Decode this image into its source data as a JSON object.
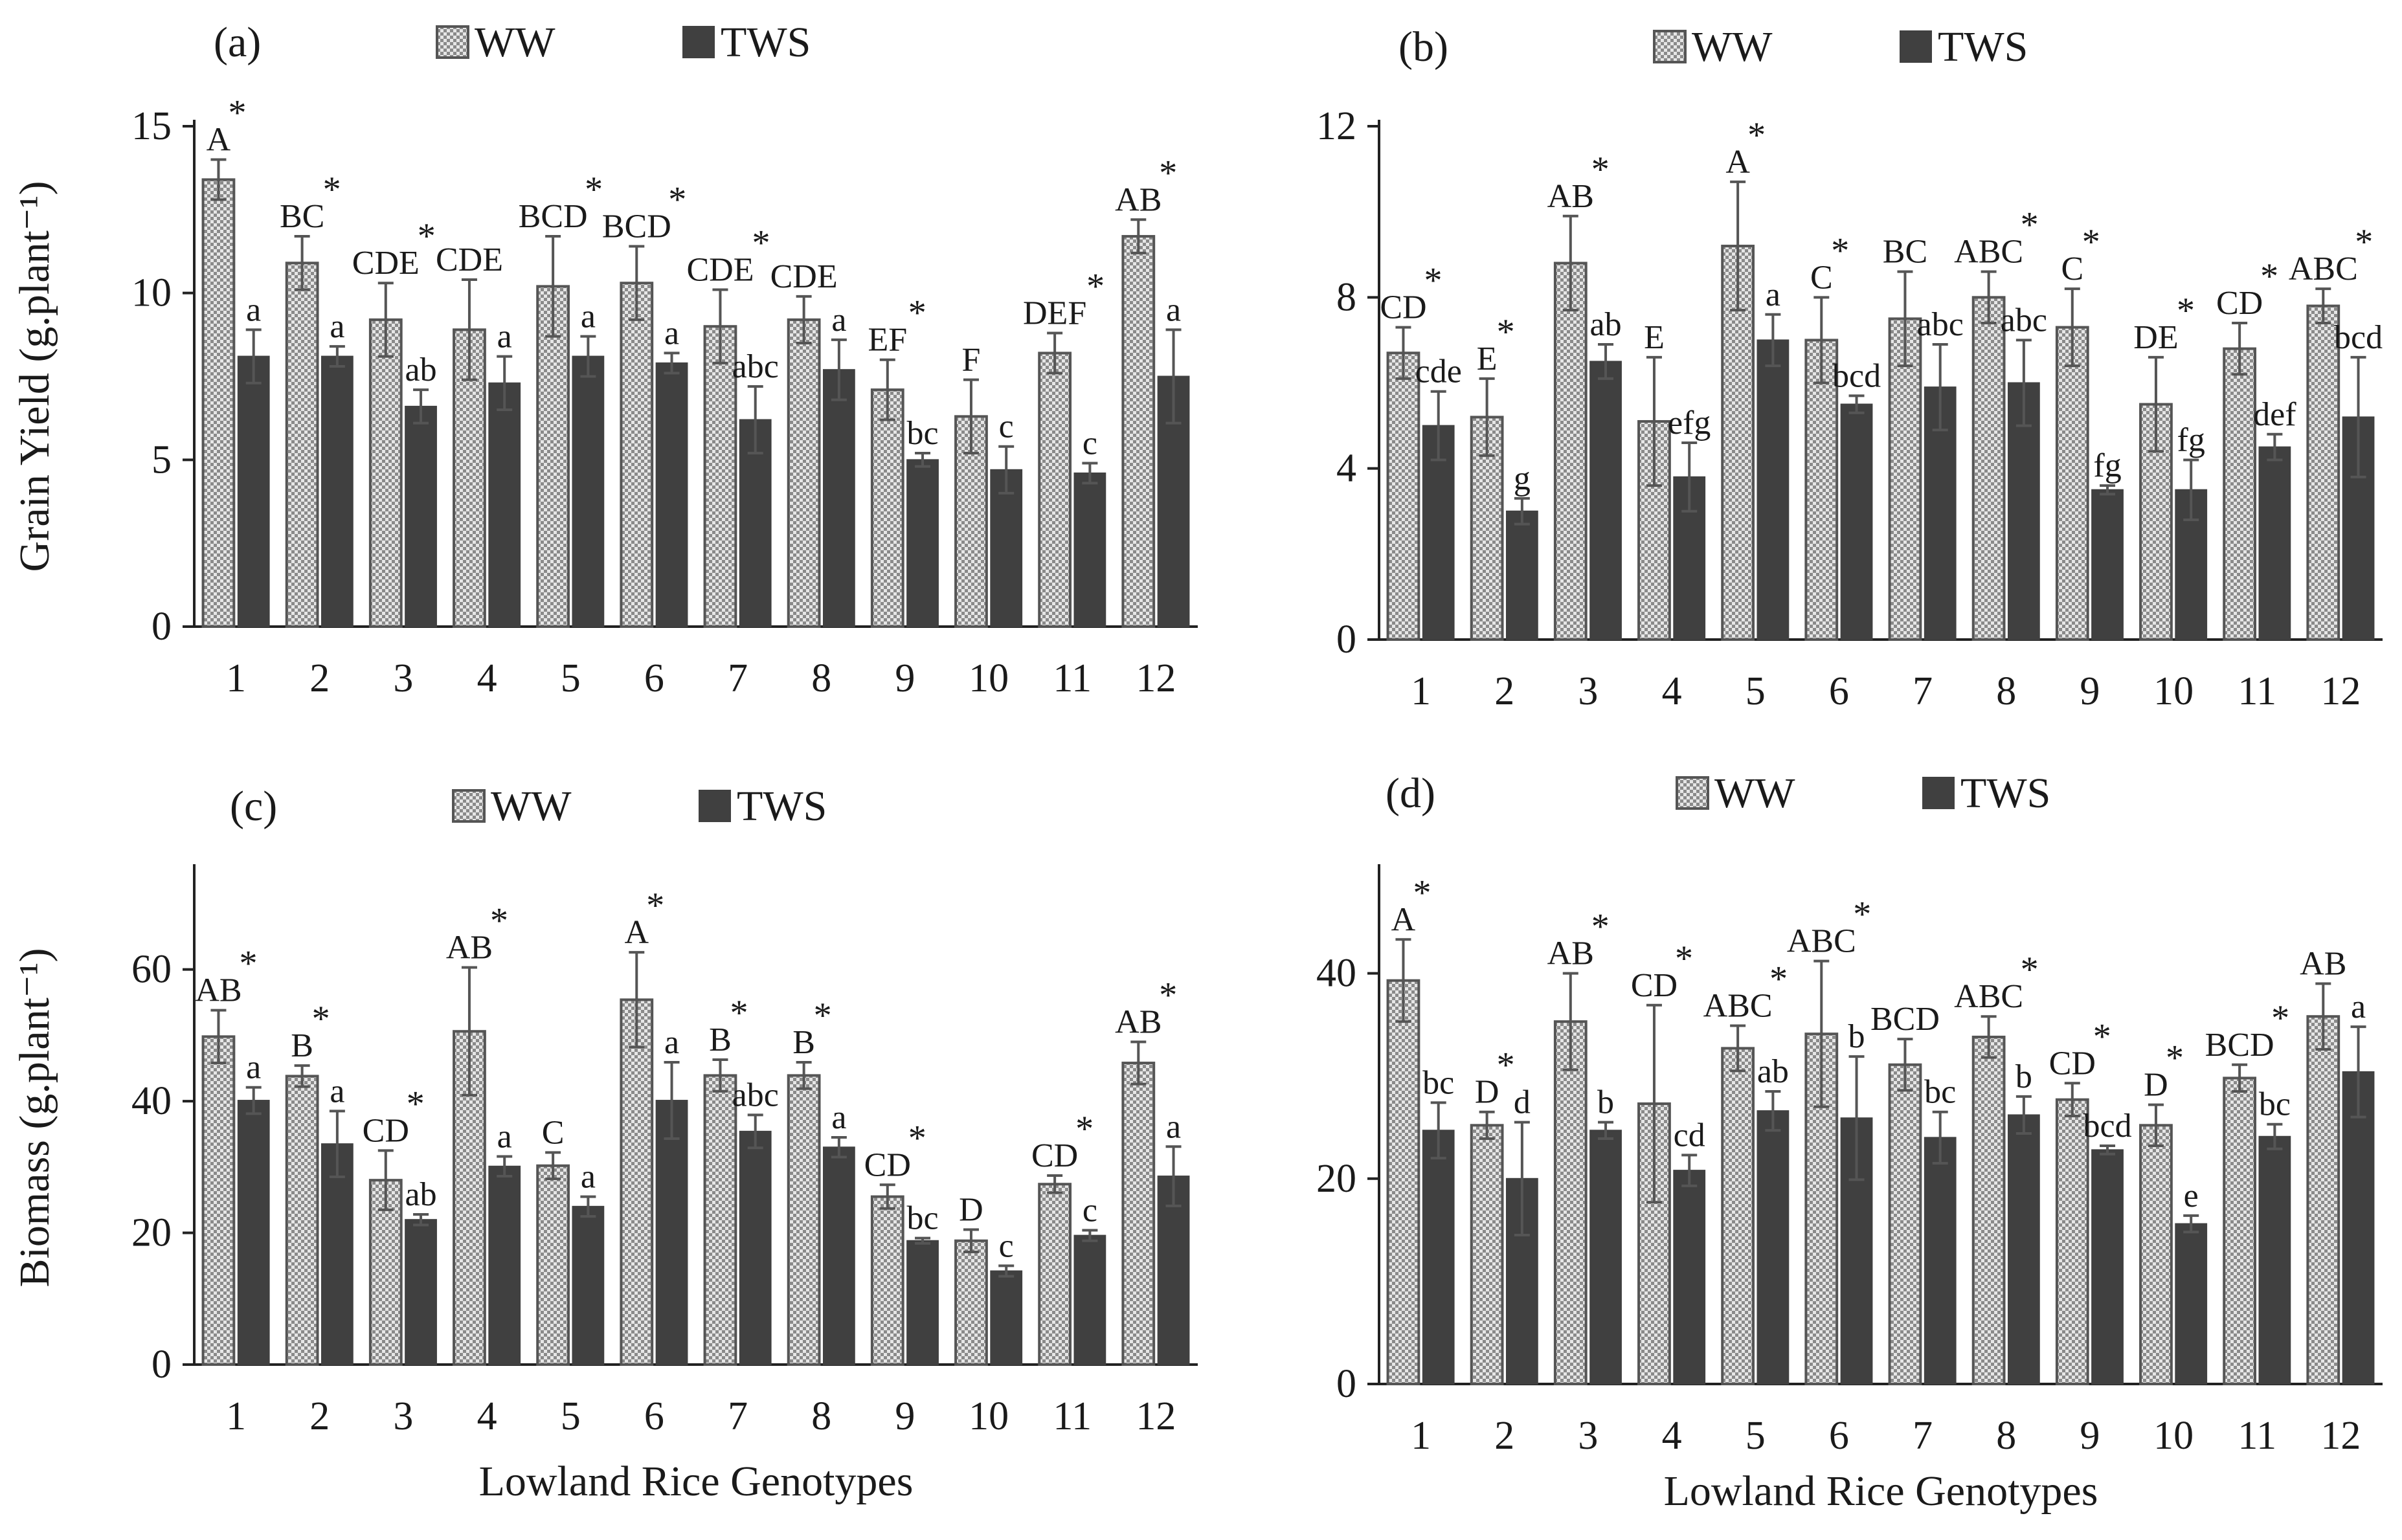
{
  "chart_data": [
    {
      "type": "bar",
      "panel_label": "(a)",
      "ylabel": "Grain Yield (g.plant⁻¹)",
      "xlabel": "",
      "ylim": [
        0,
        15
      ],
      "yticks": [
        "0",
        "5",
        "10",
        "15"
      ],
      "categories": [
        "1",
        "2",
        "3",
        "4",
        "5",
        "6",
        "7",
        "8",
        "9",
        "10",
        "11",
        "12"
      ],
      "legend": [
        "WW",
        "TWS"
      ],
      "series": [
        {
          "name": "WW",
          "values": [
            13.4,
            10.9,
            9.2,
            8.9,
            10.2,
            10.3,
            9.0,
            9.2,
            7.1,
            6.3,
            8.2,
            11.7
          ],
          "errors": [
            0.6,
            0.8,
            1.1,
            1.5,
            1.5,
            1.1,
            1.1,
            0.7,
            0.9,
            1.1,
            0.6,
            0.5
          ],
          "letters": [
            "A",
            "BC",
            "CDE",
            "CDE",
            "BCD",
            "BCD",
            "CDE",
            "CDE",
            "EF",
            "F",
            "DEF",
            "AB"
          ],
          "stars": [
            true,
            true,
            true,
            false,
            true,
            true,
            true,
            false,
            true,
            false,
            true,
            true
          ]
        },
        {
          "name": "TWS",
          "values": [
            8.1,
            8.1,
            6.6,
            7.3,
            8.1,
            7.9,
            6.2,
            7.7,
            5.0,
            4.7,
            4.6,
            7.5
          ],
          "errors": [
            0.8,
            0.3,
            0.5,
            0.8,
            0.6,
            0.3,
            1.0,
            0.9,
            0.2,
            0.7,
            0.3,
            1.4
          ],
          "letters": [
            "a",
            "a",
            "ab",
            "a",
            "a",
            "a",
            "abc",
            "a",
            "bc",
            "c",
            "c",
            "a"
          ]
        }
      ]
    },
    {
      "type": "bar",
      "panel_label": "(b)",
      "ylabel": "",
      "xlabel": "",
      "ylim": [
        0,
        12
      ],
      "yticks": [
        "0",
        "4",
        "8",
        "12"
      ],
      "categories": [
        "1",
        "2",
        "3",
        "4",
        "5",
        "6",
        "7",
        "8",
        "9",
        "10",
        "11",
        "12"
      ],
      "legend": [
        "WW",
        "TWS"
      ],
      "series": [
        {
          "name": "WW",
          "values": [
            6.7,
            5.2,
            8.8,
            5.1,
            9.2,
            7.0,
            7.5,
            8.0,
            7.3,
            5.5,
            6.8,
            7.8
          ],
          "errors": [
            0.6,
            0.9,
            1.1,
            1.5,
            1.5,
            1.0,
            1.1,
            0.6,
            0.9,
            1.1,
            0.6,
            0.4
          ],
          "letters": [
            "CD",
            "E",
            "AB",
            "E",
            "A",
            "C",
            "BC",
            "ABC",
            "C",
            "DE",
            "CD",
            "ABC"
          ],
          "stars": [
            true,
            true,
            true,
            false,
            true,
            true,
            false,
            true,
            true,
            true,
            true,
            true
          ]
        },
        {
          "name": "TWS",
          "values": [
            5.0,
            3.0,
            6.5,
            3.8,
            7.0,
            5.5,
            5.9,
            6.0,
            3.5,
            3.5,
            4.5,
            5.2
          ],
          "errors": [
            0.8,
            0.3,
            0.4,
            0.8,
            0.6,
            0.2,
            1.0,
            1.0,
            0.1,
            0.7,
            0.3,
            1.4
          ],
          "letters": [
            "cde",
            "g",
            "ab",
            "efg",
            "a",
            "bcd",
            "abc",
            "abc",
            "fg",
            "fg",
            "def",
            "bcd"
          ]
        }
      ]
    },
    {
      "type": "bar",
      "panel_label": "(c)",
      "ylabel": "Biomass (g.plant⁻¹)",
      "xlabel": "Lowland Rice Genotypes",
      "ylim": [
        0,
        75
      ],
      "yticks": [
        "0",
        "20",
        "40",
        "60"
      ],
      "categories": [
        "1",
        "2",
        "3",
        "4",
        "5",
        "6",
        "7",
        "8",
        "9",
        "10",
        "11",
        "12"
      ],
      "legend": [
        "WW",
        "TWS"
      ],
      "series": [
        {
          "name": "WW",
          "values": [
            49.8,
            43.8,
            28.0,
            50.6,
            30.2,
            55.4,
            43.9,
            43.9,
            25.5,
            18.8,
            27.4,
            45.8
          ],
          "errors": [
            4.0,
            1.6,
            4.5,
            9.7,
            2.0,
            7.2,
            2.4,
            2.0,
            1.8,
            1.7,
            1.3,
            3.2
          ],
          "letters": [
            "AB",
            "B",
            "CD",
            "AB",
            "C",
            "A",
            "B",
            "B",
            "CD",
            "D",
            "CD",
            "AB"
          ],
          "stars": [
            true,
            true,
            true,
            true,
            false,
            true,
            true,
            true,
            true,
            false,
            true,
            true
          ]
        },
        {
          "name": "TWS",
          "values": [
            40.1,
            33.5,
            22.0,
            30.1,
            24.0,
            40.1,
            35.4,
            33.0,
            18.8,
            14.2,
            19.6,
            28.6
          ],
          "errors": [
            2.0,
            5.0,
            0.8,
            1.5,
            1.5,
            5.8,
            2.5,
            1.5,
            0.4,
            0.8,
            0.8,
            4.5
          ],
          "letters": [
            "a",
            "a",
            "ab",
            "a",
            "a",
            "a",
            "abc",
            "a",
            "bc",
            "c",
            "c",
            "a"
          ]
        }
      ]
    },
    {
      "type": "bar",
      "panel_label": "(d)",
      "ylabel": "",
      "xlabel": "Lowland Rice Genotypes",
      "ylim": [
        0,
        50
      ],
      "yticks": [
        "0",
        "20",
        "40"
      ],
      "categories": [
        "1",
        "2",
        "3",
        "4",
        "5",
        "6",
        "7",
        "8",
        "9",
        "10",
        "11",
        "12"
      ],
      "legend": [
        "WW",
        "TWS"
      ],
      "series": [
        {
          "name": "WW",
          "values": [
            39.3,
            25.2,
            35.3,
            27.3,
            32.7,
            34.1,
            31.1,
            33.8,
            27.7,
            25.2,
            29.8,
            35.8
          ],
          "errors": [
            4.0,
            1.3,
            4.7,
            9.6,
            2.2,
            7.1,
            2.5,
            2.0,
            1.6,
            2.0,
            1.3,
            3.2
          ],
          "letters": [
            "A",
            "D",
            "AB",
            "CD",
            "ABC",
            "ABC",
            "BCD",
            "ABC",
            "CD",
            "D",
            "BCD",
            "AB"
          ],
          "stars": [
            true,
            true,
            true,
            true,
            true,
            true,
            false,
            true,
            true,
            true,
            true,
            false
          ]
        },
        {
          "name": "TWS",
          "values": [
            24.7,
            20.0,
            24.7,
            20.8,
            26.6,
            25.9,
            24.0,
            26.2,
            22.8,
            15.6,
            24.1,
            30.4
          ],
          "errors": [
            2.7,
            5.5,
            0.8,
            1.5,
            1.9,
            6.0,
            2.5,
            1.8,
            0.4,
            0.8,
            1.2,
            4.4
          ],
          "letters": [
            "bc",
            "d",
            "b",
            "cd",
            "ab",
            "b",
            "bc",
            "b",
            "bcd",
            "e",
            "bc",
            "a"
          ]
        }
      ]
    }
  ]
}
